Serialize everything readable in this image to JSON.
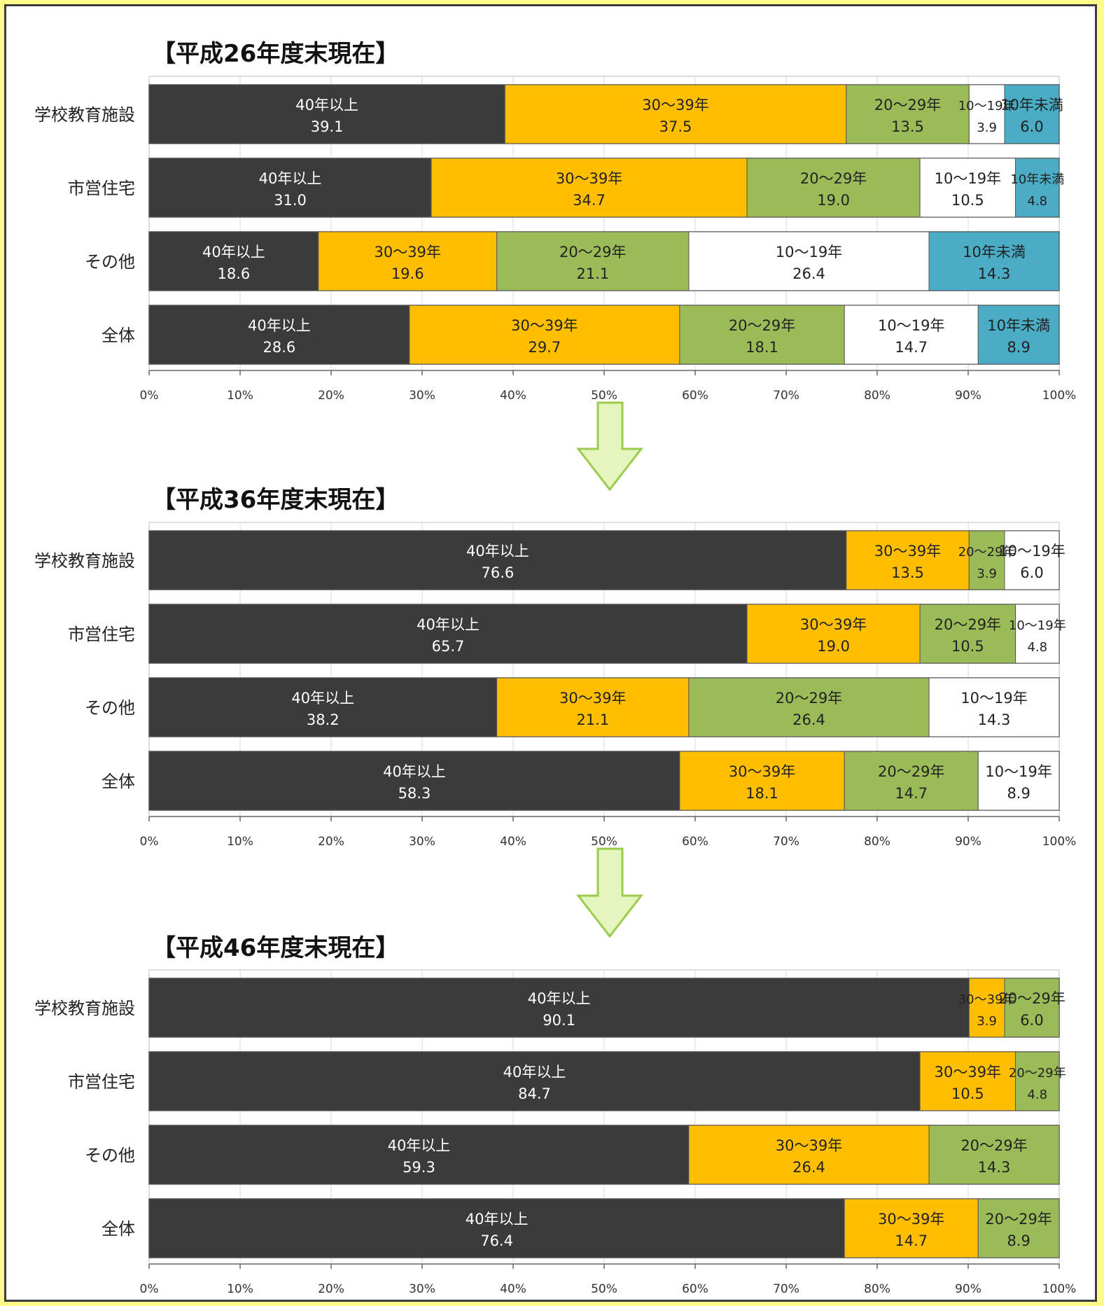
{
  "colors": {
    "s40": "#3b3b3b",
    "s30": "#ffbf00",
    "s20": "#9bbb59",
    "s10": "#ffffff",
    "sU10": "#4bacc6",
    "arrow_fill": "#e4f5bd",
    "arrow_stroke": "#9ccb4e",
    "background": "#fffb8a"
  },
  "x_ticks": [
    "0%",
    "10%",
    "20%",
    "30%",
    "40%",
    "50%",
    "60%",
    "70%",
    "80%",
    "90%",
    "100%"
  ],
  "chart_data": [
    {
      "type": "bar",
      "orientation": "horizontal",
      "stacked": true,
      "title": "【平成26年度末現在】",
      "categories": [
        "学校教育施設",
        "市営住宅",
        "その他",
        "全体"
      ],
      "xlim": [
        0,
        100
      ],
      "series": [
        {
          "name": "40年以上",
          "color": "#3b3b3b",
          "text_color": "#ffffff",
          "values": [
            39.1,
            31.0,
            18.6,
            28.6
          ]
        },
        {
          "name": "30〜39年",
          "color": "#ffbf00",
          "text_color": "#222222",
          "values": [
            37.5,
            34.7,
            19.6,
            29.7
          ]
        },
        {
          "name": "20〜29年",
          "color": "#9bbb59",
          "text_color": "#222222",
          "values": [
            13.5,
            19.0,
            21.1,
            18.1
          ]
        },
        {
          "name": "10〜19年",
          "color": "#ffffff",
          "text_color": "#222222",
          "values": [
            3.9,
            10.5,
            26.4,
            14.7
          ]
        },
        {
          "name": "10年未満",
          "color": "#4bacc6",
          "text_color": "#222222",
          "values": [
            6.0,
            4.8,
            14.3,
            8.9
          ]
        }
      ]
    },
    {
      "type": "bar",
      "orientation": "horizontal",
      "stacked": true,
      "title": "【平成36年度末現在】",
      "categories": [
        "学校教育施設",
        "市営住宅",
        "その他",
        "全体"
      ],
      "xlim": [
        0,
        100
      ],
      "series": [
        {
          "name": "40年以上",
          "color": "#3b3b3b",
          "text_color": "#ffffff",
          "values": [
            76.6,
            65.7,
            38.2,
            58.3
          ]
        },
        {
          "name": "30〜39年",
          "color": "#ffbf00",
          "text_color": "#222222",
          "values": [
            13.5,
            19.0,
            21.1,
            18.1
          ]
        },
        {
          "name": "20〜29年",
          "color": "#9bbb59",
          "text_color": "#222222",
          "values": [
            3.9,
            10.5,
            26.4,
            14.7
          ]
        },
        {
          "name": "10〜19年",
          "color": "#ffffff",
          "text_color": "#222222",
          "values": [
            6.0,
            4.8,
            14.3,
            8.9
          ]
        }
      ]
    },
    {
      "type": "bar",
      "orientation": "horizontal",
      "stacked": true,
      "title": "【平成46年度末現在】",
      "categories": [
        "学校教育施設",
        "市営住宅",
        "その他",
        "全体"
      ],
      "xlim": [
        0,
        100
      ],
      "series": [
        {
          "name": "40年以上",
          "color": "#3b3b3b",
          "text_color": "#ffffff",
          "values": [
            90.1,
            84.7,
            59.3,
            76.4
          ]
        },
        {
          "name": "30〜39年",
          "color": "#ffbf00",
          "text_color": "#222222",
          "values": [
            3.9,
            10.5,
            26.4,
            14.7
          ]
        },
        {
          "name": "20〜29年",
          "color": "#9bbb59",
          "text_color": "#222222",
          "values": [
            6.0,
            4.8,
            14.3,
            8.9
          ]
        }
      ]
    }
  ]
}
